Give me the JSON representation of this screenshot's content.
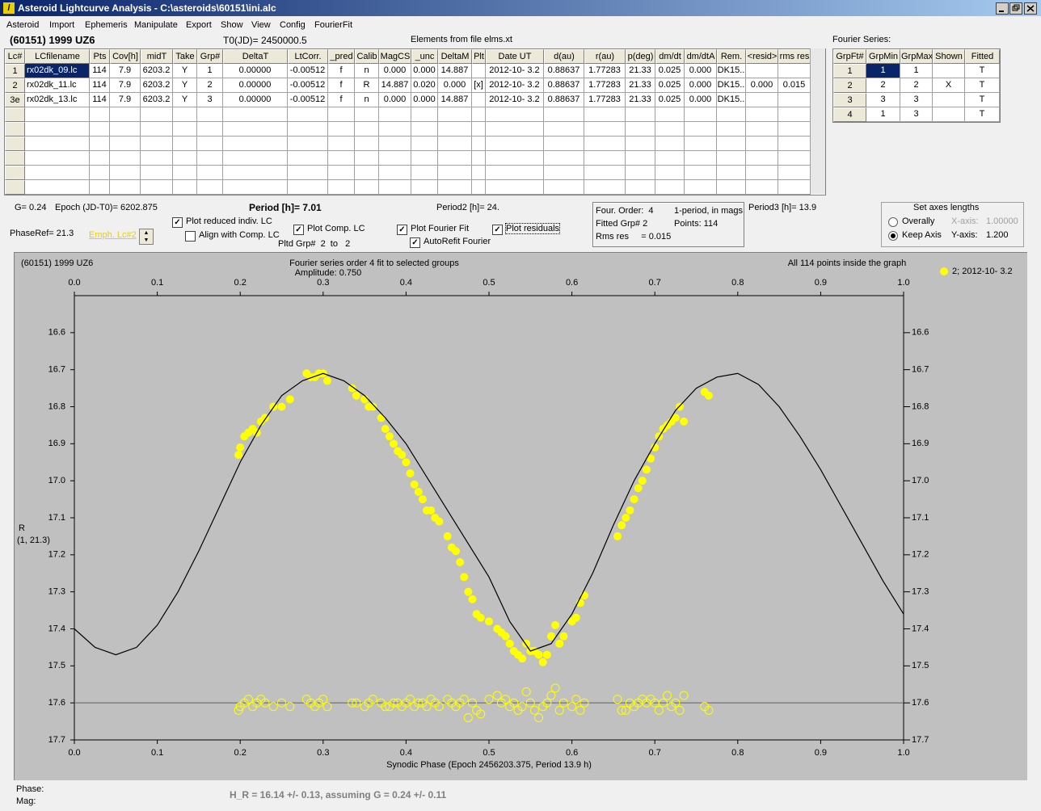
{
  "window": {
    "title": "Asteroid Lightcurve Analysis - C:\\asteroids\\60151\\ini.alc"
  },
  "menu": [
    "Asteroid",
    "Import",
    "Ephemeris",
    "Manipulate",
    "Export",
    "Show",
    "View",
    "Config",
    "FourierFit"
  ],
  "header": {
    "object": "(60151) 1999 UZ6",
    "t0": "T0(JD)= 2450000.5",
    "elements": "Elements from file elms.xt"
  },
  "lc_table": {
    "columns": [
      "Lc#",
      "LCfilename",
      "Pts",
      "Cov[h]",
      "midT",
      "Take",
      "Grp#",
      "DeltaT",
      "LtCorr.",
      "_pred",
      "Calib",
      "MagCS",
      "_unc",
      "DeltaM",
      "Plt",
      "Date UT",
      "d(au)",
      "r(au)",
      "p(deg)",
      "dm/dt",
      "dm/dtA",
      "Rem.",
      "<resid>",
      "rms res"
    ],
    "rows": [
      [
        "1",
        "rx02dk_09.lc",
        "114",
        "7.9",
        "6203.2",
        "Y",
        "1",
        "0.00000",
        "-0.00512",
        "f",
        "n",
        "0.000",
        "0.000",
        "14.887",
        null,
        "2012-10- 3.2",
        "0.88637",
        "1.77283",
        "21.33",
        "0.025",
        "0.000",
        "DK15..",
        null,
        null
      ],
      [
        "2",
        "rx02dk_11.lc",
        "114",
        "7.9",
        "6203.2",
        "Y",
        "2",
        "0.00000",
        "-0.00512",
        "f",
        "R",
        "14.887",
        "0.020",
        "0.000",
        "[x]",
        "2012-10- 3.2",
        "0.88637",
        "1.77283",
        "21.33",
        "0.025",
        "0.000",
        "DK15..",
        "0.000",
        "0.015"
      ],
      [
        "3e",
        "rx02dk_13.lc",
        "114",
        "7.9",
        "6203.2",
        "Y",
        "3",
        "0.00000",
        "-0.00512",
        "f",
        "n",
        "0.000",
        "0.000",
        "14.887",
        null,
        "2012-10- 3.2",
        "0.88637",
        "1.77283",
        "21.33",
        "0.025",
        "0.000",
        "DK15..",
        null,
        null
      ]
    ]
  },
  "fourier_table": {
    "title": "Fourier Series:",
    "columns": [
      "GrpFt#",
      "GrpMin",
      "GrpMax",
      "Shown",
      "Fitted"
    ],
    "rows": [
      [
        "1",
        "1",
        "1",
        null,
        "T"
      ],
      [
        "2",
        "2",
        "2",
        "X",
        "T"
      ],
      [
        "3",
        "3",
        "3",
        null,
        "T"
      ],
      [
        "4",
        "1",
        "3",
        null,
        "T"
      ]
    ]
  },
  "info": {
    "g": "G= 0.24",
    "epoch": "Epoch (JD-T0)= 6202.875",
    "period": "Period [h]= 7.01",
    "period2": "Period2 [h]= 24.",
    "period3": "Period3 [h]= 13.9",
    "phaseref": "PhaseRef= 21.3",
    "emph": "Emph. Lc#2",
    "pltd": "Pltd Grp#  2  to   2"
  },
  "fit_box": {
    "order": "Four. Order:  4",
    "mode": "1-period, in mags",
    "fitted": "Fitted Grp# 2",
    "points": "Points: 114",
    "rms": "Rms res     = 0.015"
  },
  "axes_box": {
    "title": "Set axes lengths",
    "overally": "Overally",
    "keep": "Keep Axis",
    "x_label": "X-axis:",
    "x_value": "1.00000",
    "y_label": "Y-axis:",
    "y_value": "1.200",
    "selected": "keep"
  },
  "checkboxes": [
    {
      "label": "Plot reduced indiv. LC",
      "checked": true
    },
    {
      "label": "Align with Comp. LC",
      "checked": false
    },
    {
      "label": "Plot Comp. LC",
      "checked": true
    },
    {
      "label": "Plot Fourier Fit",
      "checked": true
    },
    {
      "label": "AutoRefit Fourier",
      "checked": true
    },
    {
      "label": "Plot residuals",
      "checked": true
    }
  ],
  "status": {
    "phase": "Phase:",
    "mag": "Mag:",
    "result": "H_R = 16.14 +/- 0.13, assuming G = 0.24 +/- 0.11"
  },
  "chart_data": {
    "type": "scatter",
    "title": "(60151) 1999 UZ6",
    "subtitle": "Fourier series order 4 fit to selected groups",
    "amplitude": "Amplitude: 0.750",
    "note": "All 114 points inside the graph",
    "xlabel": "Synodic Phase (Epoch 2456203.375, Period 13.9 h)",
    "ylabel": "R",
    "ylabel2": "(1, 21.3)",
    "xlim": [
      0,
      1
    ],
    "ylim": [
      17.7,
      16.5
    ],
    "xticks": [
      {
        "value": 0,
        "label": "0.0"
      },
      0.1,
      0.2,
      0.3,
      0.4,
      0.5,
      0.6,
      0.7,
      0.8,
      0.9,
      {
        "value": 1,
        "label": "1.0"
      }
    ],
    "yticks": [
      16.6,
      16.7,
      16.8,
      16.9,
      {
        "value": 17,
        "label": "17.0"
      },
      17.1,
      17.2,
      17.3,
      17.4,
      17.5,
      17.6,
      17.7
    ],
    "hline": {
      "value": 17.6,
      "color": "#606060"
    },
    "series": [
      {
        "name": "2; 2012-10- 3.2",
        "color": "#ffff00",
        "marker": "filled",
        "x": [
          0.198,
          0.2,
          0.205,
          0.21,
          0.215,
          0.22,
          0.225,
          0.23,
          0.24,
          0.25,
          0.26,
          0.28,
          0.285,
          0.29,
          0.295,
          0.3,
          0.305,
          0.335,
          0.34,
          0.35,
          0.355,
          0.36,
          0.37,
          0.375,
          0.38,
          0.385,
          0.39,
          0.395,
          0.4,
          0.405,
          0.41,
          0.415,
          0.42,
          0.425,
          0.43,
          0.435,
          0.44,
          0.45,
          0.455,
          0.46,
          0.465,
          0.47,
          0.475,
          0.48,
          0.485,
          0.49,
          0.5,
          0.51,
          0.515,
          0.52,
          0.525,
          0.53,
          0.535,
          0.54,
          0.545,
          0.55,
          0.555,
          0.56,
          0.565,
          0.57,
          0.575,
          0.58,
          0.585,
          0.59,
          0.6,
          0.605,
          0.61,
          0.615,
          0.655,
          0.66,
          0.665,
          0.67,
          0.675,
          0.68,
          0.685,
          0.69,
          0.695,
          0.7,
          0.705,
          0.71,
          0.715,
          0.72,
          0.725,
          0.73,
          0.735,
          0.76,
          0.765
        ],
        "values": [
          16.93,
          16.91,
          16.88,
          16.87,
          16.86,
          16.87,
          16.84,
          16.83,
          16.8,
          16.8,
          16.78,
          16.71,
          16.72,
          16.72,
          16.71,
          16.71,
          16.73,
          16.75,
          16.77,
          16.78,
          16.8,
          16.8,
          16.83,
          16.86,
          16.88,
          16.9,
          16.92,
          16.93,
          16.95,
          16.98,
          17.01,
          17.03,
          17.05,
          17.08,
          17.08,
          17.1,
          17.11,
          17.15,
          17.18,
          17.19,
          17.22,
          17.26,
          17.3,
          17.32,
          17.36,
          17.37,
          17.38,
          17.4,
          17.41,
          17.42,
          17.44,
          17.46,
          17.47,
          17.48,
          17.44,
          17.46,
          17.46,
          17.47,
          17.49,
          17.47,
          17.42,
          17.39,
          17.44,
          17.42,
          17.38,
          17.37,
          17.33,
          17.31,
          17.15,
          17.12,
          17.1,
          17.08,
          17.05,
          17.02,
          17.0,
          16.97,
          16.94,
          16.91,
          16.88,
          16.86,
          16.85,
          16.84,
          16.83,
          16.8,
          16.84,
          16.76,
          16.77
        ]
      },
      {
        "color": "#ffff00",
        "marker": "open",
        "x": [
          0.198,
          0.2,
          0.205,
          0.21,
          0.215,
          0.22,
          0.225,
          0.23,
          0.24,
          0.25,
          0.26,
          0.28,
          0.285,
          0.29,
          0.295,
          0.3,
          0.305,
          0.335,
          0.34,
          0.35,
          0.355,
          0.36,
          0.37,
          0.375,
          0.38,
          0.385,
          0.39,
          0.395,
          0.4,
          0.405,
          0.41,
          0.415,
          0.42,
          0.425,
          0.43,
          0.435,
          0.44,
          0.45,
          0.455,
          0.46,
          0.465,
          0.47,
          0.475,
          0.48,
          0.485,
          0.49,
          0.5,
          0.51,
          0.515,
          0.52,
          0.525,
          0.53,
          0.535,
          0.54,
          0.545,
          0.55,
          0.555,
          0.56,
          0.565,
          0.57,
          0.575,
          0.58,
          0.585,
          0.59,
          0.6,
          0.605,
          0.61,
          0.615,
          0.655,
          0.66,
          0.665,
          0.67,
          0.675,
          0.68,
          0.685,
          0.69,
          0.695,
          0.7,
          0.705,
          0.71,
          0.715,
          0.72,
          0.725,
          0.73,
          0.735,
          0.76,
          0.765
        ],
        "values": [
          17.62,
          17.61,
          17.6,
          17.59,
          17.61,
          17.6,
          17.59,
          17.6,
          17.61,
          17.6,
          17.61,
          17.59,
          17.6,
          17.61,
          17.6,
          17.59,
          17.61,
          17.6,
          17.6,
          17.61,
          17.6,
          17.59,
          17.6,
          17.61,
          17.61,
          17.6,
          17.6,
          17.61,
          17.6,
          17.59,
          17.61,
          17.6,
          17.6,
          17.61,
          17.59,
          17.6,
          17.61,
          17.59,
          17.6,
          17.61,
          17.6,
          17.59,
          17.64,
          17.6,
          17.62,
          17.63,
          17.59,
          17.58,
          17.6,
          17.59,
          17.61,
          17.6,
          17.62,
          17.61,
          17.57,
          17.6,
          17.62,
          17.64,
          17.61,
          17.6,
          17.58,
          17.56,
          17.62,
          17.6,
          17.61,
          17.59,
          17.62,
          17.6,
          17.59,
          17.62,
          17.62,
          17.6,
          17.61,
          17.6,
          17.59,
          17.6,
          17.59,
          17.6,
          17.62,
          17.6,
          17.58,
          17.61,
          17.6,
          17.62,
          17.58,
          17.61,
          17.62
        ]
      },
      {
        "color": "#000000",
        "marker": "line",
        "x": [
          0,
          0.025,
          0.05,
          0.075,
          0.1,
          0.125,
          0.15,
          0.175,
          0.2,
          0.225,
          0.25,
          0.275,
          0.3,
          0.325,
          0.35,
          0.375,
          0.4,
          0.425,
          0.45,
          0.475,
          0.5,
          0.525,
          0.55,
          0.575,
          0.6,
          0.625,
          0.65,
          0.675,
          0.7,
          0.725,
          0.75,
          0.775,
          0.8,
          0.825,
          0.85,
          0.875,
          0.9,
          0.925,
          0.95,
          0.975,
          1
        ],
        "values": [
          17.4,
          17.45,
          17.47,
          17.45,
          17.39,
          17.3,
          17.19,
          17.07,
          16.95,
          16.85,
          16.77,
          16.73,
          16.71,
          16.73,
          16.77,
          16.83,
          16.9,
          16.99,
          17.08,
          17.17,
          17.26,
          17.38,
          17.46,
          17.44,
          17.36,
          17.25,
          17.12,
          17.0,
          16.9,
          16.81,
          16.75,
          16.72,
          16.71,
          16.74,
          16.8,
          16.88,
          16.97,
          17.07,
          17.17,
          17.27,
          17.36
        ]
      }
    ]
  }
}
